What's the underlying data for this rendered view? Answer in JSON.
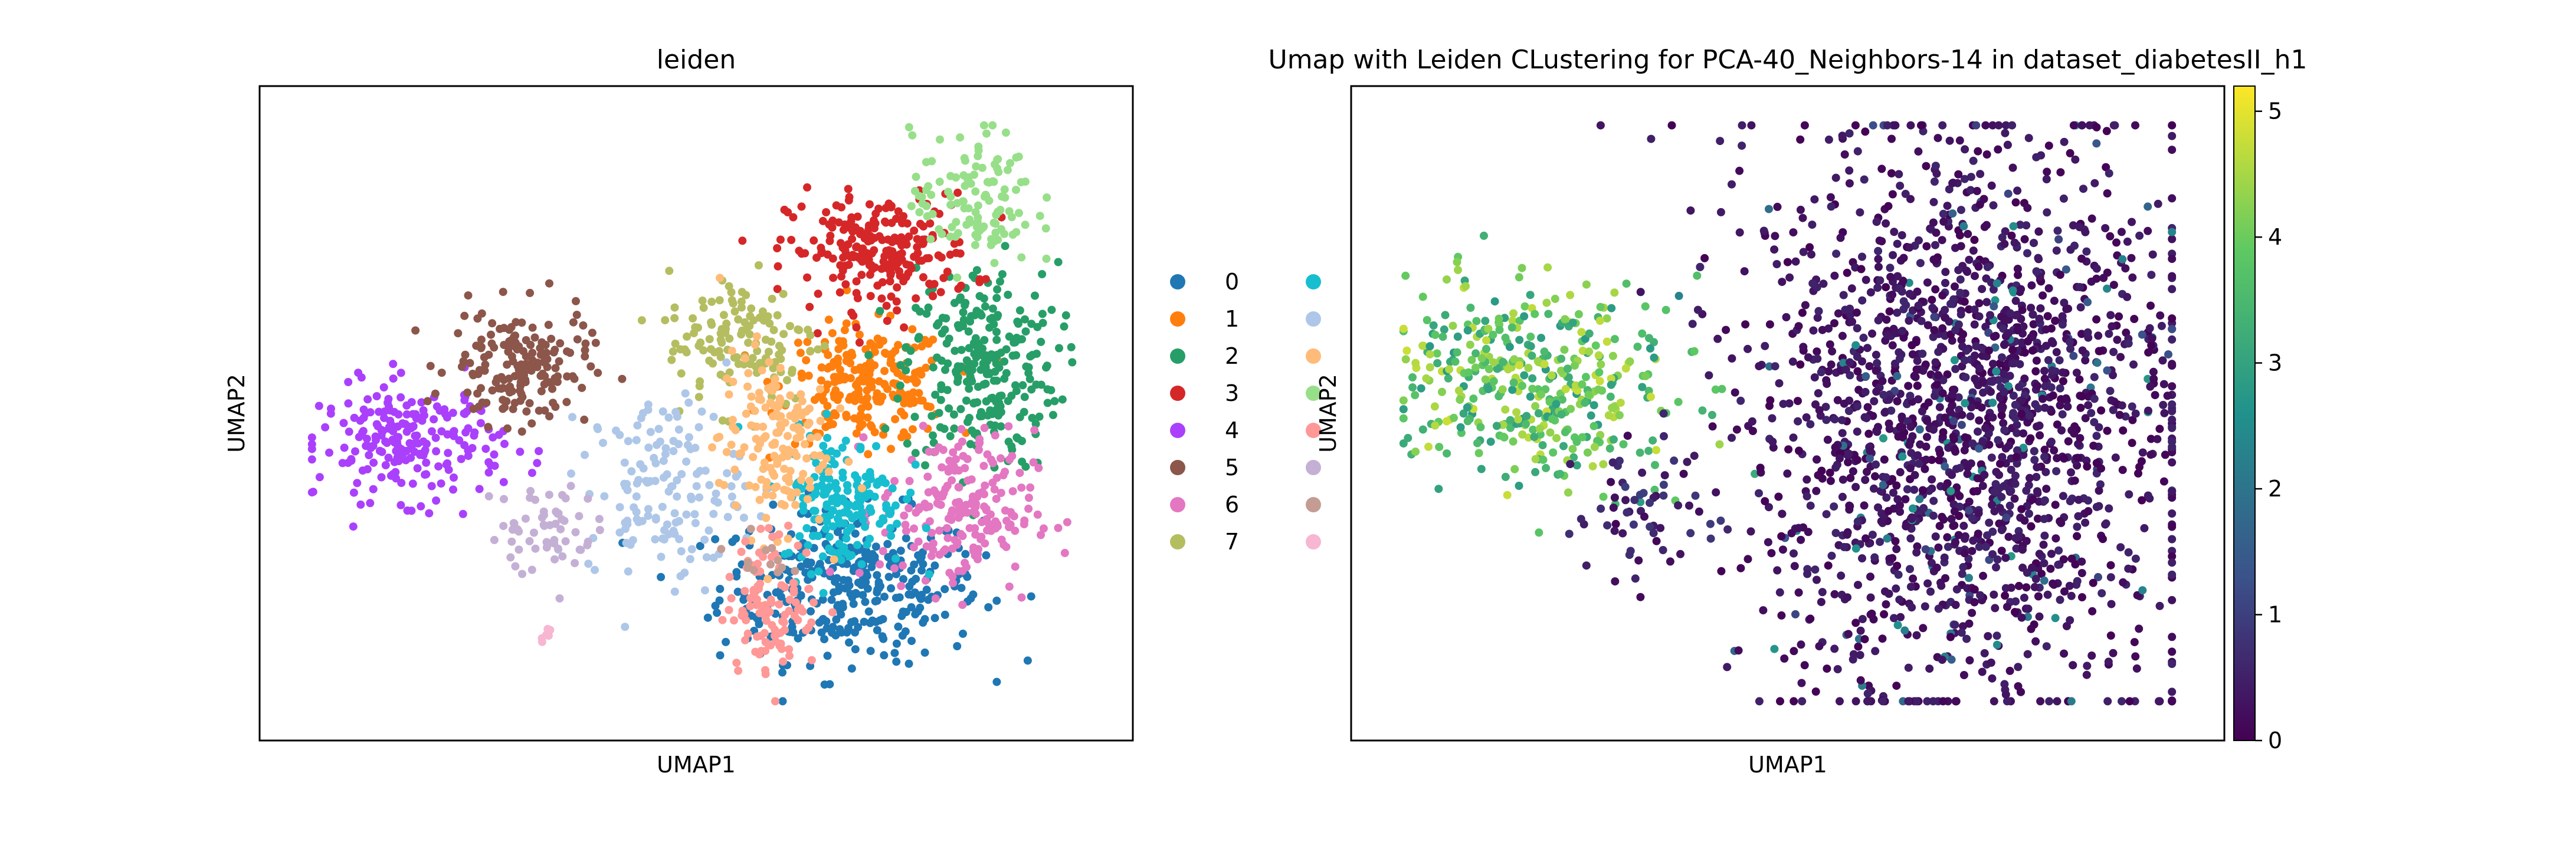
{
  "chart_data": [
    {
      "type": "scatter",
      "title": "leiden",
      "xlabel": "UMAP1",
      "ylabel": "UMAP2",
      "grid": false,
      "legend": {
        "title": "",
        "placement": "right",
        "entries": [
          {
            "label": "0",
            "color": "#1f77b4"
          },
          {
            "label": "1",
            "color": "#ff7f0e"
          },
          {
            "label": "2",
            "color": "#279e68"
          },
          {
            "label": "3",
            "color": "#d62728"
          },
          {
            "label": "4",
            "color": "#aa40fc"
          },
          {
            "label": "5",
            "color": "#8c564b"
          },
          {
            "label": "6",
            "color": "#e377c2"
          },
          {
            "label": "7",
            "color": "#b5bd61"
          },
          {
            "label": "",
            "color": "#17becf"
          },
          {
            "label": "",
            "color": "#aec7e8"
          },
          {
            "label": "",
            "color": "#ffbb78"
          },
          {
            "label": "",
            "color": "#98df8a"
          },
          {
            "label": "",
            "color": "#ff9896"
          },
          {
            "label": "",
            "color": "#c5b0d5"
          },
          {
            "label": "",
            "color": "#c49c94"
          },
          {
            "label": "",
            "color": "#f7b6d2"
          }
        ]
      },
      "clusters": [
        {
          "id": 0,
          "color": "#1f77b4",
          "center": [
            0.7,
            0.2
          ],
          "spread": [
            0.085,
            0.065
          ],
          "count": 340
        },
        {
          "id": 1,
          "color": "#ff7f0e",
          "center": [
            0.72,
            0.55
          ],
          "spread": [
            0.055,
            0.05
          ],
          "count": 230
        },
        {
          "id": 2,
          "color": "#279e68",
          "center": [
            0.87,
            0.58
          ],
          "spread": [
            0.05,
            0.09
          ],
          "count": 260
        },
        {
          "id": 3,
          "color": "#d62728",
          "center": [
            0.74,
            0.78
          ],
          "spread": [
            0.06,
            0.05
          ],
          "count": 230
        },
        {
          "id": 4,
          "color": "#aa40fc",
          "center": [
            0.13,
            0.45
          ],
          "spread": [
            0.06,
            0.05
          ],
          "count": 220
        },
        {
          "id": 5,
          "color": "#8c564b",
          "center": [
            0.27,
            0.58
          ],
          "spread": [
            0.045,
            0.05
          ],
          "count": 170
        },
        {
          "id": 6,
          "color": "#e377c2",
          "center": [
            0.84,
            0.33
          ],
          "spread": [
            0.05,
            0.07
          ],
          "count": 200
        },
        {
          "id": 7,
          "color": "#b5bd61",
          "center": [
            0.56,
            0.63
          ],
          "spread": [
            0.05,
            0.06
          ],
          "count": 130
        },
        {
          "id": 8,
          "color": "#17becf",
          "center": [
            0.69,
            0.35
          ],
          "spread": [
            0.04,
            0.06
          ],
          "count": 170
        },
        {
          "id": 9,
          "color": "#aec7e8",
          "center": [
            0.46,
            0.37
          ],
          "spread": [
            0.05,
            0.08
          ],
          "count": 150
        },
        {
          "id": 10,
          "color": "#ffbb78",
          "center": [
            0.6,
            0.45
          ],
          "spread": [
            0.035,
            0.08
          ],
          "count": 160
        },
        {
          "id": 11,
          "color": "#98df8a",
          "center": [
            0.86,
            0.87
          ],
          "spread": [
            0.04,
            0.06
          ],
          "count": 120
        },
        {
          "id": 12,
          "color": "#ff9896",
          "center": [
            0.6,
            0.17
          ],
          "spread": [
            0.03,
            0.06
          ],
          "count": 110
        },
        {
          "id": 13,
          "color": "#c5b0d5",
          "center": [
            0.3,
            0.3
          ],
          "spread": [
            0.035,
            0.04
          ],
          "count": 60
        },
        {
          "id": 14,
          "color": "#c49c94",
          "center": [
            0.58,
            0.25
          ],
          "spread": [
            0.02,
            0.02
          ],
          "count": 12
        },
        {
          "id": 15,
          "color": "#f7b6d2",
          "center": [
            0.305,
            0.12
          ],
          "spread": [
            0.004,
            0.008
          ],
          "count": 6
        }
      ]
    },
    {
      "type": "scatter",
      "title": "Umap with Leiden CLustering for PCA-40_Neighbors-14 in dataset_diabetesII_h1",
      "xlabel": "UMAP1",
      "ylabel": "UMAP2",
      "grid": false,
      "colorbar": {
        "colormap": "viridis",
        "range": [
          0,
          5.2
        ],
        "ticks": [
          "0",
          "1",
          "2",
          "3",
          "4",
          "5"
        ],
        "tick_values": [
          0,
          1,
          2,
          3,
          4,
          5
        ]
      },
      "groups": [
        {
          "region": "left-cluster",
          "center": [
            0.17,
            0.55
          ],
          "spread": [
            0.09,
            0.09
          ],
          "count": 420,
          "value_range": [
            2.8,
            4.8
          ]
        },
        {
          "region": "bridge",
          "center": [
            0.31,
            0.32
          ],
          "spread": [
            0.04,
            0.06
          ],
          "count": 60,
          "value_range": [
            0.0,
            1.0
          ]
        },
        {
          "region": "main-cluster",
          "center": [
            0.73,
            0.5
          ],
          "spread": [
            0.14,
            0.24
          ],
          "count": 1900,
          "value_range": [
            0.0,
            0.6
          ]
        }
      ]
    }
  ]
}
